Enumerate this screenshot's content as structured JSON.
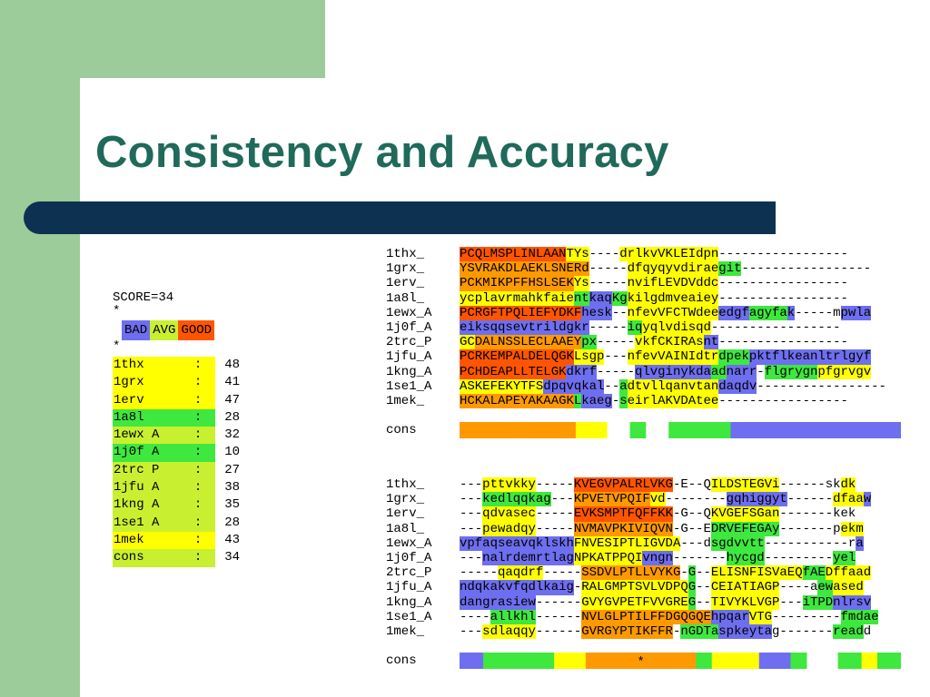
{
  "slide": {
    "title": "Consistency and Accuracy"
  },
  "colors": {
    "blue": "#6e6ef0",
    "green": "#3ee83e",
    "yellow_green": "#c8f030",
    "yellow": "#ffff00",
    "orange": "#ff9900",
    "red": "#ff5500",
    "title": "#1f6a5a",
    "accent_bar": "#0d3151",
    "background_green": "#9ccc99"
  },
  "score_panel": {
    "score_line": "SCORE=34",
    "star_1": "*",
    "star_2": "*",
    "legend": [
      {
        "text": "BAD",
        "color": "#6e6ef0"
      },
      {
        "text": "AVG",
        "color": "#c8f030"
      },
      {
        "text": "GOOD",
        "color": "#ff5500"
      }
    ],
    "rows": [
      {
        "name": "1thx",
        "colon": ":",
        "value": "48",
        "color": "#ffff00"
      },
      {
        "name": "1grx",
        "colon": ":",
        "value": "41",
        "color": "#ffff00"
      },
      {
        "name": "1erv",
        "colon": ":",
        "value": "47",
        "color": "#ffff00"
      },
      {
        "name": "1a8l",
        "colon": ":",
        "value": "28",
        "color": "#3ee83e"
      },
      {
        "name": "1ewx A",
        "colon": ":",
        "value": "32",
        "color": "#c8f030"
      },
      {
        "name": "1j0f A",
        "colon": ":",
        "value": "10",
        "color": "#3ee83e"
      },
      {
        "name": "2trc P",
        "colon": ":",
        "value": "27",
        "color": "#c8f030"
      },
      {
        "name": "1jfu A",
        "colon": ":",
        "value": "38",
        "color": "#c8f030"
      },
      {
        "name": "1kng A",
        "colon": ":",
        "value": "35",
        "color": "#c8f030"
      },
      {
        "name": "1se1 A",
        "colon": ":",
        "value": "28",
        "color": "#c8f030"
      },
      {
        "name": "1mek",
        "colon": ":",
        "value": "43",
        "color": "#ffff00"
      },
      {
        "name": "cons",
        "colon": ":",
        "value": "34",
        "color": "#c8f030"
      }
    ]
  },
  "alignment_block_1": {
    "rows": [
      {
        "name": "1thx_",
        "seq": "PCQLMSPLINLAANTYs----drlkvVKLEIdpn-----------------",
        "colors": "RRRRRRRRRRRRRRYYY----YYYYYYYYYYYYY-----------------"
      },
      {
        "name": "1grx_",
        "seq": "YSVRAKDLAEKLSNERd-----dfqyqyvdiraegit-----------------",
        "colors": "OOOOOOOOOOOOOOOOO-----YYYYYYYYYYYYGGG-----------------"
      },
      {
        "name": "1erv_",
        "seq": "PCKMIKPFFHSLSEKYs-----nvifLEVDVddc-----------------",
        "colors": "OOOOOOOOOOOOOOOYY-----YYYYYYYYYYYYY-----------------"
      },
      {
        "name": "1a8l_",
        "seq": "ycplavrmahkfaientkaqKgkilgdmveaiey-----------------",
        "colors": "YYYYYYYYYYYYYYYGGBBBGGYYYYYYYYYYYYY-----------------"
      },
      {
        "name": "1ewx_A",
        "seq": "PCRGFTPQLIEFYDKFhesk--nfevVFCTWdeeedgfagyfak-----mpwla",
        "colors": "RRRRRRRRRRRRRRRRBBBB--YYYYYYYYYYYYBBBBGGGGGBB-----BBBBB"
      },
      {
        "name": "1j0f_A",
        "seq": "eiksqqsevtrildgkr-----iqyqlvdisqd-----------------",
        "colors": "BBBBBBBBBBBBBBBBB-----GGYYYYYYYYY-----------------"
      },
      {
        "name": "2trc_P",
        "seq": "GCDALNSSLECLAAEYpx-----vkfCKIRAsnt-----------------",
        "colors": "YYOOOOOOOOOOOOOOGG-----YYYYYYYYYBBB-----------------"
      },
      {
        "name": "1jfu_A",
        "seq": "PCRKEMPALDELQGKLsgp---nfevVAINIdtrdpekpktflkeanltrlgyf",
        "colors": "RRRRRRRRRRRRRRRYYYY---YYYYYYYYYYYYGGGGBBBBBBBBBBBBBBBBB"
      },
      {
        "name": "1kng_A",
        "seq": "PCHDEAPLLTELGKdkrf-----qlvginykdaadnarr-flgrygnpfgrvgv",
        "colors": "RRRRRRRRRRRRRRBBBB-----BBBBBBBBBBGGBBBB-GGGGGGGYYYYYYYY"
      },
      {
        "name": "1se1_A",
        "seq": "ASKEFEKYTFSdpqvqkal--adtvllqanvtandaqdv-----------------",
        "colors": "YYYYYYYYYYYBBBBBBBB--GYYYYYYYYYYYYBBBBB-----------------"
      },
      {
        "name": "1mek_",
        "seq": "HCKALAPEYAKAAGKLkaeg-seirlAKVDAtee-----------------",
        "colors": "OOOOOOOOOOOOOOOGBBBB-GYYYYYYYYYYYY-----------------"
      }
    ],
    "cons": {
      "name": "cons",
      "colors": "OOOOOOOOOOOOOOOYYYYYGGGGGGGGGGGGGGGBBBBBBBBBBBBBBBBBBBBBB",
      "gaps": [
        19,
        20,
        21,
        24,
        25,
        26
      ],
      "star": ""
    }
  },
  "alignment_block_2": {
    "rows": [
      {
        "name": "1thx_",
        "seq": "---pttvkky-----KVEGVPALRLVKG-E--QILDSTEGVi------skdk",
        "colors": "---YYYYYYY-----RRRRRRRRRRRRRR-R--YYYYYYYYYYY------YYYY"
      },
      {
        "name": "1grx_",
        "seq": "---kedlqqkag---KPVETVPQIFvd--------gqhiggyt------dfaaw",
        "colors": "---GGGGGGGGG---OOOOOOOOOOYY--------BBBBBBBB------YYYYB"
      },
      {
        "name": "1erv_",
        "seq": "---qdvasec-----EVKSMPTFQFFKK-G--QKVGEFSGan-------kek",
        "colors": "---YYYYYYY-----RRRRRRRRRRRRRR-R--YYYYYYYYYYYY-------YYY"
      },
      {
        "name": "1a8l_",
        "seq": "---pewadqy-----NVMAVPKIVIQVN-G--EDRVEFEGAy-------pekm",
        "colors": "---YYYYYYY-----OOOOOOOOOOOOOO-G--GGGGGGGGGG-------YYYY"
      },
      {
        "name": "1ewx_A",
        "seq": "vpfaqseavqklskhFNVESIPTLIGVDA---dsgdvvtt-----------ra",
        "colors": "BBBBBBBBBBBBBBBYYYYYYYYYYYYYYY---GGGGGGGG-----------BB"
      },
      {
        "name": "1j0f_A",
        "seq": "---nalrdemrtlagNPKATPPQIvngn-------hycgd---------yel",
        "colors": "---BBBBBBBBBBBBYYYYYYYYYBBBB-------GGGGG---------GGG"
      },
      {
        "name": "2trc_P",
        "seq": "-----qaqdrf-----SSDVLPTLLVYKG-G--ELISNFISVaEQfAEDffaad",
        "colors": "-----YYYYYY-----OOOOOOOOOOOOO-G--YYYYYYYYYYYYGGGYYYYYY"
      },
      {
        "name": "1jfu_A",
        "seq": "ndqkakvfqdlkaig-RALGMPTSVLVDPQG--CEIATIAGP----aewased",
        "colors": "BBBBBBBBBBBBBBB-YYYYYYYYYYYYYYG--YYYYYYYYYY----GGYYYYY"
      },
      {
        "name": "1kng_A",
        "seq": "dangrasiew------GVYGVPETFVVGREG--TIVYKLVGP---iTPDnlrsv",
        "colors": "BBBBBBBBBB------YYYYYYYYYYYYYYG--YYYYYYYYY---GGGGBBBBB"
      },
      {
        "name": "1se1_A",
        "seq": "----allkhl------NVLGLPTILFFDGQGQEhpqarVTG---------fmdae",
        "colors": "----GGGGGG------OOOOOOOOOOOOOOOOOBBBBBYYY---------GGGGG"
      },
      {
        "name": "1mek_",
        "seq": "---sdlaqqy------GVRGYPTIKFFR-nGDTaspkeytag-------readd",
        "colors": "---YYYYYYY------OOOOOOOOOOOO-GGGGGBBBBBBB-------GGGGG"
      }
    ],
    "cons": {
      "name": "cons",
      "colors": "BBBGGGGGGGGGYYYYOOOOOOOOOOOOOOGGYYYYYYBBBBGGGGGGGGGYYGGG",
      "gaps": [
        44,
        45,
        46,
        47
      ],
      "star": "*"
    }
  }
}
